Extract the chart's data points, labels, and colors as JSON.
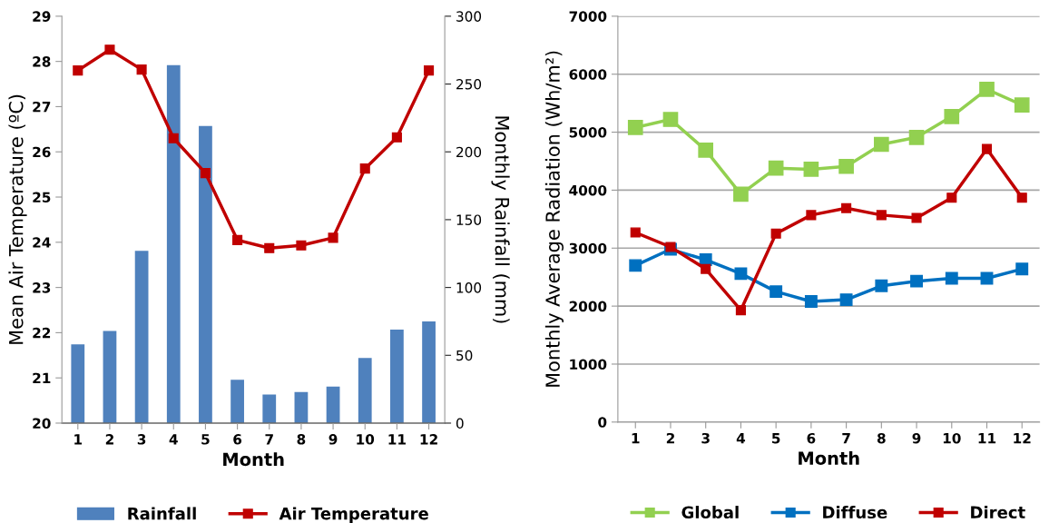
{
  "chart_data": [
    {
      "type": "bar",
      "xlabel": "Month",
      "ylabel": "Mean Air Temperature (ºC)",
      "y2label": "Monthly Rainfall (mm)",
      "categories": [
        "1",
        "2",
        "3",
        "4",
        "5",
        "6",
        "7",
        "8",
        "9",
        "10",
        "11",
        "12"
      ],
      "series": [
        {
          "name": "Rainfall",
          "type": "bar",
          "axis": "y2",
          "color": "#4f81bd",
          "values": [
            58,
            68,
            127,
            264,
            219,
            32,
            21,
            23,
            27,
            48,
            69,
            75
          ]
        },
        {
          "name": "Air Temperature",
          "type": "line",
          "color": "#c00000",
          "values": [
            27.8,
            28.26,
            27.82,
            26.3,
            25.53,
            24.05,
            23.87,
            23.93,
            24.1,
            25.63,
            26.32,
            27.8
          ]
        }
      ],
      "ylim": [
        20,
        29
      ],
      "yticks": [
        20,
        21,
        22,
        23,
        24,
        25,
        26,
        27,
        28,
        29
      ],
      "y2lim": [
        0,
        300
      ],
      "y2ticks": [
        0,
        50,
        100,
        150,
        200,
        250,
        300
      ],
      "grid": false,
      "legend": "bottom",
      "marker": "square",
      "line_style": "solid"
    },
    {
      "type": "line",
      "xlabel": "Month",
      "ylabel": "Monthly Average Radiation (Wh/m²)",
      "categories": [
        "1",
        "2",
        "3",
        "4",
        "5",
        "6",
        "7",
        "8",
        "9",
        "10",
        "11",
        "12"
      ],
      "series": [
        {
          "name": "Global",
          "color": "#92d050",
          "values": [
            5080,
            5220,
            4690,
            3930,
            4380,
            4360,
            4410,
            4790,
            4910,
            5270,
            5740,
            5470
          ]
        },
        {
          "name": "Diffuse",
          "color": "#0070c0",
          "values": [
            2700,
            2980,
            2800,
            2560,
            2250,
            2080,
            2110,
            2350,
            2430,
            2480,
            2480,
            2640
          ]
        },
        {
          "name": "Direct",
          "color": "#c00000",
          "values": [
            3270,
            3020,
            2640,
            1930,
            3250,
            3570,
            3690,
            3570,
            3520,
            3870,
            4710,
            3870
          ]
        }
      ],
      "ylim": [
        0,
        7000
      ],
      "yticks": [
        0,
        1000,
        2000,
        3000,
        4000,
        5000,
        6000,
        7000
      ],
      "grid": "y",
      "legend": "bottom",
      "marker": "square",
      "line_style": "solid"
    }
  ]
}
